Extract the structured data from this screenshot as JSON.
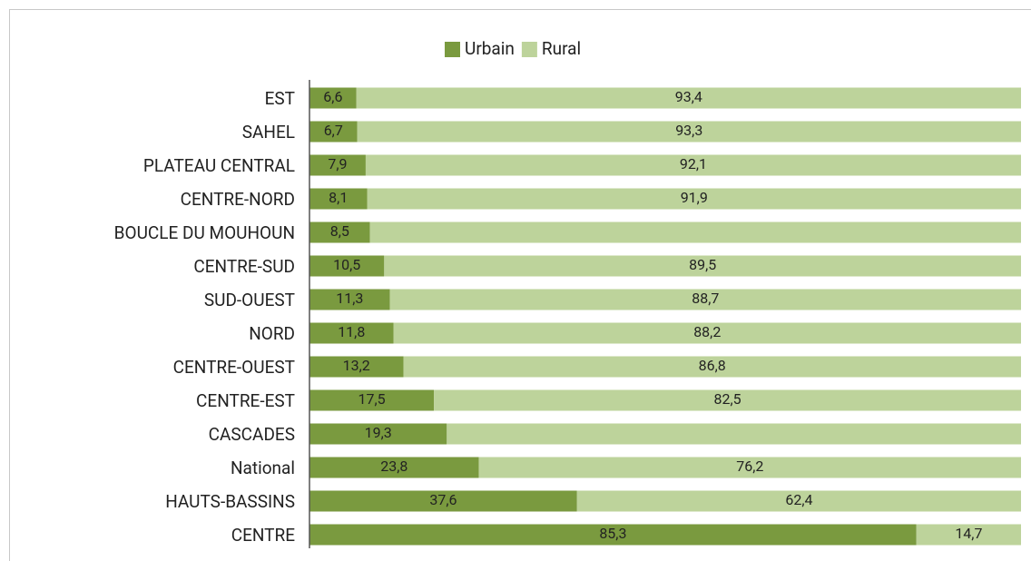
{
  "chart_data": {
    "type": "stacked-bar-horizontal",
    "categories": [
      "EST",
      "SAHEL",
      "PLATEAU CENTRAL",
      "CENTRE-NORD",
      "BOUCLE DU MOUHOUN",
      "CENTRE-SUD",
      "SUD-OUEST",
      "NORD",
      "CENTRE-OUEST",
      "CENTRE-EST",
      "CASCADES",
      "National",
      "HAUTS-BASSINS",
      "CENTRE"
    ],
    "series": [
      {
        "name": "Urbain",
        "color": "#7a9a3f",
        "values": [
          6.6,
          6.7,
          7.9,
          8.1,
          8.5,
          10.5,
          11.3,
          11.8,
          13.2,
          17.5,
          19.3,
          23.8,
          37.6,
          85.3
        ],
        "value_labels": [
          "6,6",
          "6,7",
          "7,9",
          "8,1",
          "8,5",
          "10,5",
          "11,3",
          "11,8",
          "13,2",
          "17,5",
          "19,3",
          "23,8",
          "37,6",
          "85,3"
        ]
      },
      {
        "name": "Rural",
        "color": "#bdd39b",
        "values": [
          93.4,
          93.3,
          92.1,
          91.9,
          91.5,
          89.5,
          88.7,
          88.2,
          86.8,
          82.5,
          80.7,
          76.2,
          62.4,
          14.7
        ],
        "value_labels": [
          "93,4",
          "93,3",
          "92,1",
          "91,9",
          null,
          "89,5",
          "88,7",
          "88,2",
          "86,8",
          "82,5",
          null,
          "76,2",
          "62,4",
          "14,7"
        ]
      }
    ],
    "xlim": [
      0,
      100
    ],
    "legend": "top"
  }
}
